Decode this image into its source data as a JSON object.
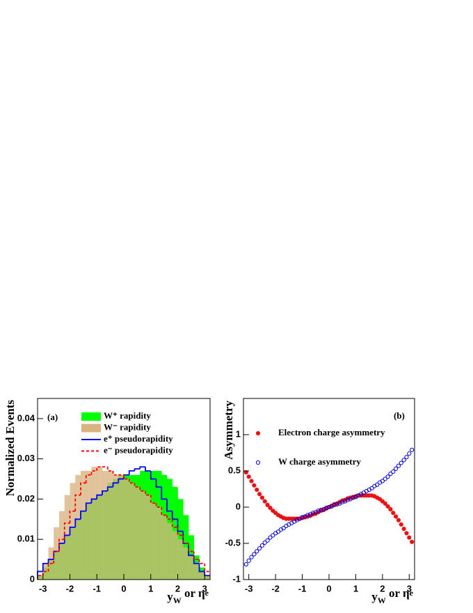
{
  "chart_data": [
    {
      "type": "histogram",
      "annotation": "(a)",
      "y_label": "Normalized Events",
      "x_label": [
        "y",
        "W",
        " or η",
        "e"
      ],
      "xlim": [
        -3.2,
        3.2
      ],
      "xticks": [
        -3,
        -2,
        -1,
        0,
        1,
        2,
        3
      ],
      "ylim": [
        0,
        0.045
      ],
      "yticks": [
        0,
        0.01,
        0.02,
        0.03,
        0.04
      ],
      "bins": [
        -3.2,
        -3,
        -2.8,
        -2.6,
        -2.4,
        -2.2,
        -2,
        -1.8,
        -1.6,
        -1.4,
        -1.2,
        -1,
        -0.8,
        -0.6,
        -0.4,
        -0.2,
        0,
        0.2,
        0.4,
        0.6,
        0.8,
        1,
        1.2,
        1.4,
        1.6,
        1.8,
        2,
        2.2,
        2.4,
        2.6,
        2.8,
        3,
        3.2
      ],
      "series": [
        {
          "name": "W⁺ rapidity",
          "color": "#00ff00",
          "style": "filled",
          "values": [
            0.001,
            0.003,
            0.005,
            0.007,
            0.009,
            0.011,
            0.013,
            0.015,
            0.017,
            0.019,
            0.02,
            0.021,
            0.022,
            0.024,
            0.025,
            0.026,
            0.026,
            0.026,
            0.026,
            0.027,
            0.027,
            0.027,
            0.027,
            0.026,
            0.025,
            0.023,
            0.02,
            0.016,
            0.011,
            0.006,
            0.003,
            0.001
          ]
        },
        {
          "name": "W⁻ rapidity",
          "color": "#d9b47f",
          "style": "filled",
          "values": [
            0.001,
            0.004,
            0.008,
            0.013,
            0.017,
            0.021,
            0.024,
            0.026,
            0.027,
            0.027,
            0.028,
            0.028,
            0.027,
            0.027,
            0.026,
            0.026,
            0.025,
            0.024,
            0.023,
            0.022,
            0.021,
            0.019,
            0.018,
            0.016,
            0.014,
            0.012,
            0.01,
            0.008,
            0.006,
            0.004,
            0.002,
            0.001
          ]
        },
        {
          "name": "e⁺ pseudorapidity",
          "color": "#0000ff",
          "style": "step",
          "values": [
            0.002,
            0.004,
            0.005,
            0.007,
            0.009,
            0.011,
            0.013,
            0.015,
            0.017,
            0.019,
            0.02,
            0.021,
            0.022,
            0.023,
            0.024,
            0.025,
            0.026,
            0.027,
            0.0275,
            0.028,
            0.027,
            0.025,
            0.023,
            0.02,
            0.017,
            0.015,
            0.012,
            0.009,
            0.006,
            0.004,
            0.002,
            0.001
          ]
        },
        {
          "name": "e⁻ pseudorapidity",
          "color": "#ff0000",
          "style": "dashed",
          "values": [
            0.001,
            0.002,
            0.004,
            0.007,
            0.01,
            0.014,
            0.017,
            0.021,
            0.024,
            0.026,
            0.027,
            0.028,
            0.028,
            0.027,
            0.026,
            0.026,
            0.025,
            0.024,
            0.023,
            0.022,
            0.021,
            0.019,
            0.018,
            0.016,
            0.015,
            0.013,
            0.011,
            0.009,
            0.007,
            0.005,
            0.004,
            0.002
          ]
        }
      ]
    },
    {
      "type": "scatter",
      "annotation": "(b)",
      "y_label": "Asymmetry",
      "x_label": [
        "y",
        "W",
        " or η",
        "e"
      ],
      "xlim": [
        -3.2,
        3.2
      ],
      "xticks": [
        -3,
        -2,
        -1,
        0,
        1,
        2,
        3
      ],
      "ylim": [
        -1,
        1.5
      ],
      "yticks": [
        -1,
        -0.5,
        0,
        0.5,
        1
      ],
      "x": [
        -3.1,
        -3,
        -2.9,
        -2.8,
        -2.7,
        -2.6,
        -2.5,
        -2.4,
        -2.3,
        -2.2,
        -2.1,
        -2,
        -1.9,
        -1.8,
        -1.7,
        -1.6,
        -1.5,
        -1.4,
        -1.3,
        -1.2,
        -1.1,
        -1,
        -0.9,
        -0.8,
        -0.7,
        -0.6,
        -0.5,
        -0.4,
        -0.3,
        -0.2,
        -0.1,
        0,
        0.1,
        0.2,
        0.3,
        0.4,
        0.5,
        0.6,
        0.7,
        0.8,
        0.9,
        1,
        1.1,
        1.2,
        1.3,
        1.4,
        1.5,
        1.6,
        1.7,
        1.8,
        1.9,
        2,
        2.1,
        2.2,
        2.3,
        2.4,
        2.5,
        2.6,
        2.7,
        2.8,
        2.9,
        3,
        3.1
      ],
      "series": [
        {
          "name": "Electron charge asymmetry",
          "color": "#ee1111",
          "marker": "filled",
          "values": [
            0.48,
            0.42,
            0.36,
            0.3,
            0.24,
            0.18,
            0.13,
            0.08,
            0.03,
            -0.01,
            -0.05,
            -0.08,
            -0.11,
            -0.13,
            -0.15,
            -0.16,
            -0.16,
            -0.16,
            -0.16,
            -0.16,
            -0.16,
            -0.15,
            -0.14,
            -0.13,
            -0.12,
            -0.1,
            -0.09,
            -0.07,
            -0.05,
            -0.04,
            -0.02,
            0,
            0.02,
            0.04,
            0.05,
            0.07,
            0.09,
            0.1,
            0.12,
            0.13,
            0.14,
            0.15,
            0.16,
            0.16,
            0.16,
            0.16,
            0.16,
            0.16,
            0.15,
            0.13,
            0.11,
            0.08,
            0.05,
            0.01,
            -0.03,
            -0.08,
            -0.13,
            -0.18,
            -0.24,
            -0.3,
            -0.36,
            -0.42,
            -0.48
          ]
        },
        {
          "name": "W charge asymmetry",
          "color": "#0000dd",
          "marker": "open",
          "values": [
            -0.79,
            -0.74,
            -0.69,
            -0.65,
            -0.61,
            -0.57,
            -0.53,
            -0.49,
            -0.46,
            -0.42,
            -0.39,
            -0.36,
            -0.34,
            -0.31,
            -0.29,
            -0.26,
            -0.24,
            -0.22,
            -0.2,
            -0.18,
            -0.16,
            -0.14,
            -0.13,
            -0.11,
            -0.1,
            -0.08,
            -0.07,
            -0.05,
            -0.04,
            -0.03,
            -0.01,
            0,
            0.01,
            0.03,
            0.04,
            0.05,
            0.07,
            0.08,
            0.1,
            0.11,
            0.13,
            0.14,
            0.16,
            0.18,
            0.2,
            0.22,
            0.24,
            0.26,
            0.29,
            0.31,
            0.34,
            0.36,
            0.39,
            0.42,
            0.46,
            0.49,
            0.53,
            0.57,
            0.61,
            0.65,
            0.69,
            0.74,
            0.79
          ]
        }
      ]
    }
  ]
}
